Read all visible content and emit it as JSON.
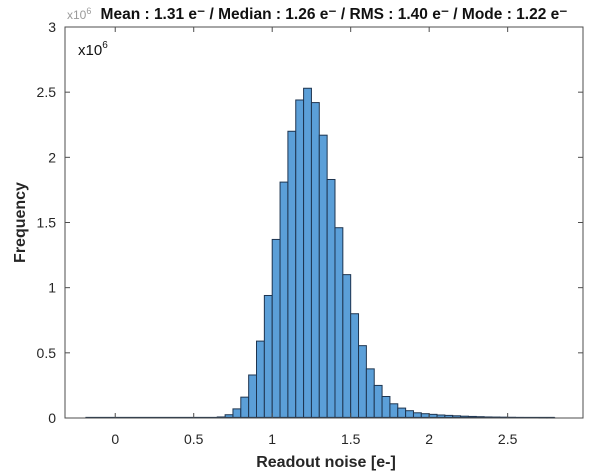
{
  "chart_data": {
    "type": "bar",
    "subtype": "histogram",
    "title": "Mean : 1.31 e⁻ / Median : 1.26 e⁻ / RMS : 1.40 e⁻ / Mode : 1.22 e⁻",
    "title_parts": {
      "mean": "1.31",
      "median": "1.26",
      "rms": "1.40",
      "mode": "1.22",
      "unit": "e⁻"
    },
    "xlabel": "Readout noise [e-]",
    "ylabel": "Frequency",
    "y_multiplier_label": "x10",
    "y_multiplier_exponent": "6",
    "xlim": [
      -0.32,
      2.98
    ],
    "ylim": [
      0,
      3
    ],
    "xticks": [
      0,
      0.5,
      1,
      1.5,
      2,
      2.5
    ],
    "xtick_labels": [
      "0",
      "0.5",
      "1",
      "1.5",
      "2",
      "2.5"
    ],
    "yticks": [
      0,
      0.5,
      1,
      1.5,
      2,
      2.5,
      3
    ],
    "ytick_labels": [
      "0",
      "0.5",
      "1",
      "1.5",
      "2",
      "2.5",
      "3"
    ],
    "grid": false,
    "legend": null,
    "bin_width": 0.05,
    "bin_lower_edges": [
      0.65,
      0.7,
      0.75,
      0.8,
      0.85,
      0.9,
      0.95,
      1.0,
      1.05,
      1.1,
      1.15,
      1.2,
      1.25,
      1.3,
      1.35,
      1.4,
      1.45,
      1.5,
      1.55,
      1.6,
      1.65,
      1.7,
      1.75,
      1.8,
      1.85,
      1.9,
      1.95,
      2.0,
      2.05,
      2.1,
      2.15,
      2.2,
      2.25,
      2.3,
      2.35,
      2.4,
      2.45,
      2.5,
      2.55,
      2.6,
      2.65,
      2.7,
      2.75
    ],
    "values": [
      0.008,
      0.025,
      0.07,
      0.16,
      0.33,
      0.59,
      0.94,
      1.37,
      1.81,
      2.2,
      2.44,
      2.53,
      2.42,
      2.17,
      1.83,
      1.46,
      1.1,
      0.8,
      0.555,
      0.377,
      0.25,
      0.165,
      0.109,
      0.076,
      0.056,
      0.04,
      0.033,
      0.028,
      0.023,
      0.02,
      0.017,
      0.014,
      0.012,
      0.01,
      0.008,
      0.007,
      0.006,
      0.005,
      0.004,
      0.003,
      0.003,
      0.002,
      0.002
    ],
    "values_unit": "x10^6 counts",
    "near_zero_tail_range": [
      -0.19,
      2.8
    ],
    "colors": {
      "bar_fill": "#5B9FD8",
      "bar_edge": "#1E3550",
      "axis": "#4D4D4D",
      "text": "#262626"
    }
  }
}
